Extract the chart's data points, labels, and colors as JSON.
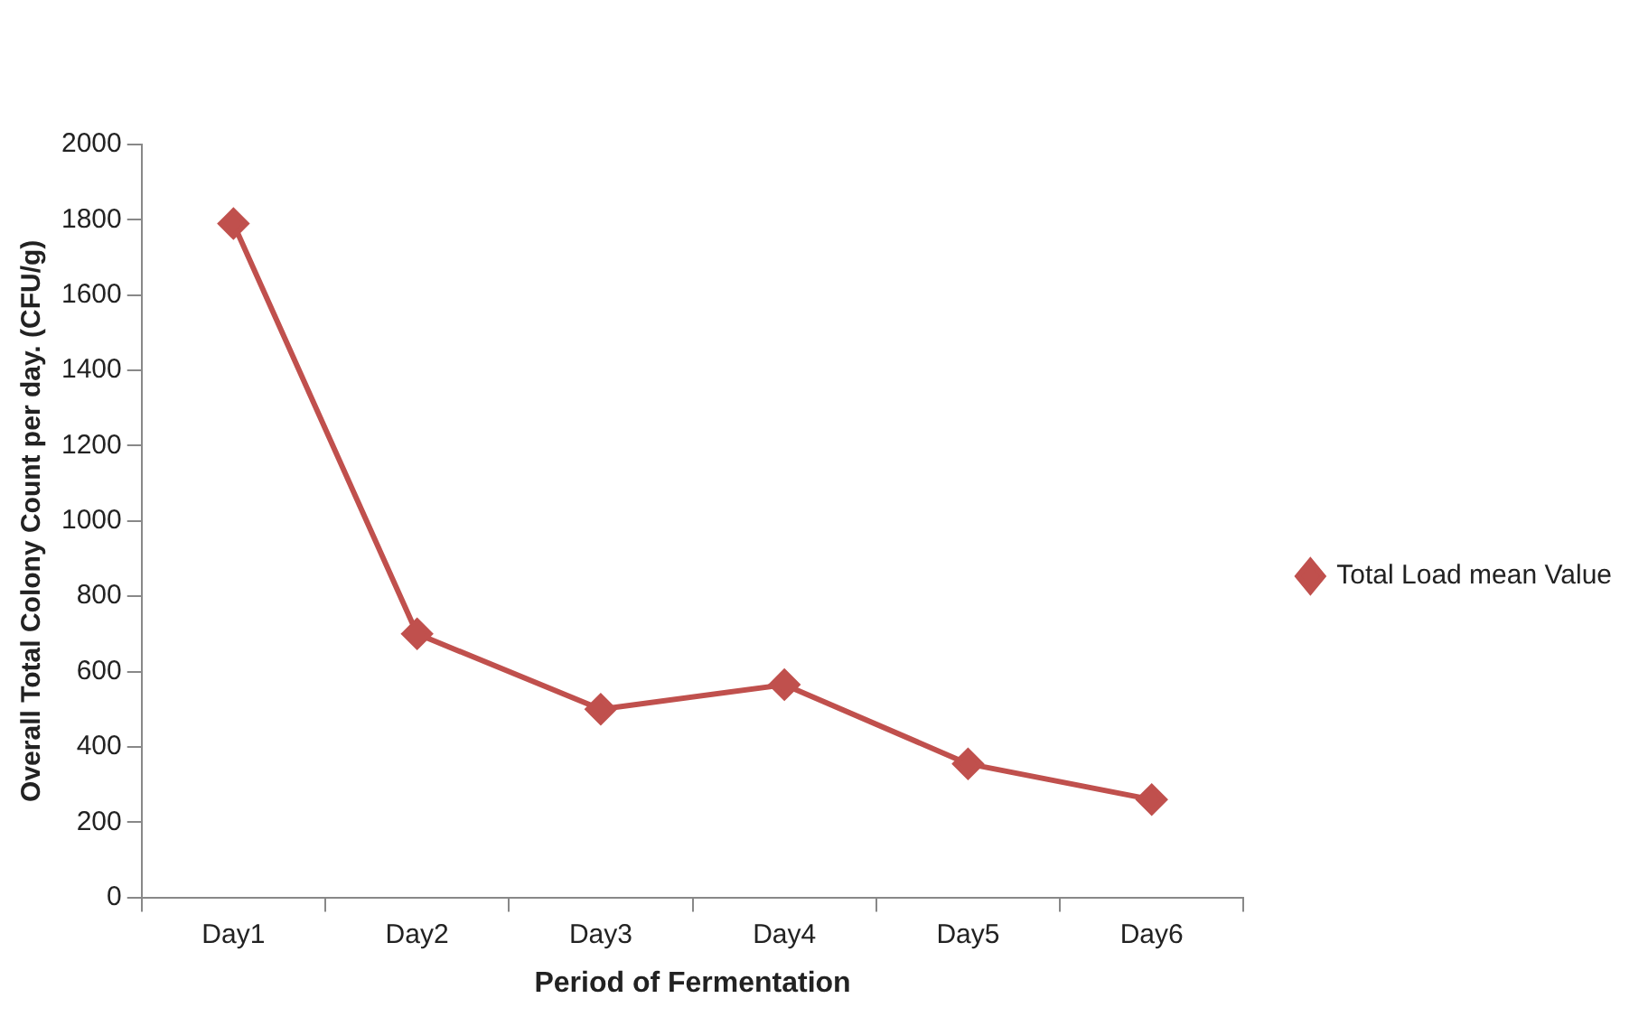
{
  "chart_data": {
    "type": "line",
    "xlabel": "Period of Fermentation",
    "ylabel": "Overall Total Colony Count per day. (CFU/g)",
    "categories": [
      "Day1",
      "Day2",
      "Day3",
      "Day4",
      "Day5",
      "Day6"
    ],
    "series": [
      {
        "name": "Total Load mean Value",
        "color": "#c0504d",
        "values": [
          1790,
          700,
          500,
          565,
          355,
          260
        ]
      }
    ],
    "ylim": [
      0,
      2000
    ],
    "yticks": [
      0,
      200,
      400,
      600,
      800,
      1000,
      1200,
      1400,
      1600,
      1800,
      2000
    ],
    "grid": false,
    "legend": "right",
    "marker": "diamond",
    "line_style": "solid"
  }
}
